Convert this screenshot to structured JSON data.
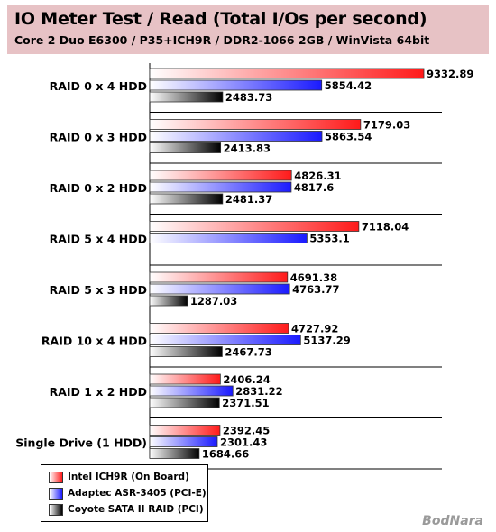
{
  "chart_data": {
    "type": "bar",
    "orientation": "horizontal",
    "title": "IO Meter Test / Read (Total I/Os per second)",
    "subtitle": "Core 2 Duo E6300 / P35+ICH9R / DDR2-1066 2GB / WinVista 64bit",
    "xlabel": "",
    "ylabel": "",
    "xlim": [
      0,
      9332.89
    ],
    "grid": false,
    "legend_position": "bottom-left",
    "categories": [
      "RAID 0 x 4 HDD",
      "RAID 0 x 3 HDD",
      "RAID 0 x 2 HDD",
      "RAID 5 x 4 HDD",
      "RAID 5 x 3 HDD",
      "RAID 10 x 4 HDD",
      "RAID 1 x 2 HDD",
      "Single Drive (1 HDD)"
    ],
    "series": [
      {
        "name": "Intel ICH9R (On Board)",
        "color": "#ff2a2a",
        "values": [
          9332.89,
          7179.03,
          4826.31,
          7118.04,
          4691.38,
          4727.92,
          2406.24,
          2392.45
        ],
        "labels": [
          "9332.89",
          "7179.03",
          "4826.31",
          "7118.04",
          "4691.38",
          "4727.92",
          "2406.24",
          "2392.45"
        ]
      },
      {
        "name": "Adaptec ASR-3405 (PCI-E)",
        "color": "#2a2aff",
        "values": [
          5854.42,
          5863.54,
          4817.6,
          5353.1,
          4763.77,
          5137.29,
          2831.22,
          2301.43
        ],
        "labels": [
          "5854.42",
          "5863.54",
          "4817.6",
          "5353.1",
          "4763.77",
          "5137.29",
          "2831.22",
          "2301.43"
        ]
      },
      {
        "name": "Coyote SATA II RAID (PCI)",
        "color": "#222222",
        "values": [
          2483.73,
          2413.83,
          2481.37,
          null,
          1287.03,
          2467.73,
          2371.51,
          1684.66
        ],
        "labels": [
          "2483.73",
          "2413.83",
          "2481.37",
          null,
          "1287.03",
          "2467.73",
          "2371.51",
          "1684.66"
        ]
      }
    ]
  },
  "watermark": "BodNara"
}
